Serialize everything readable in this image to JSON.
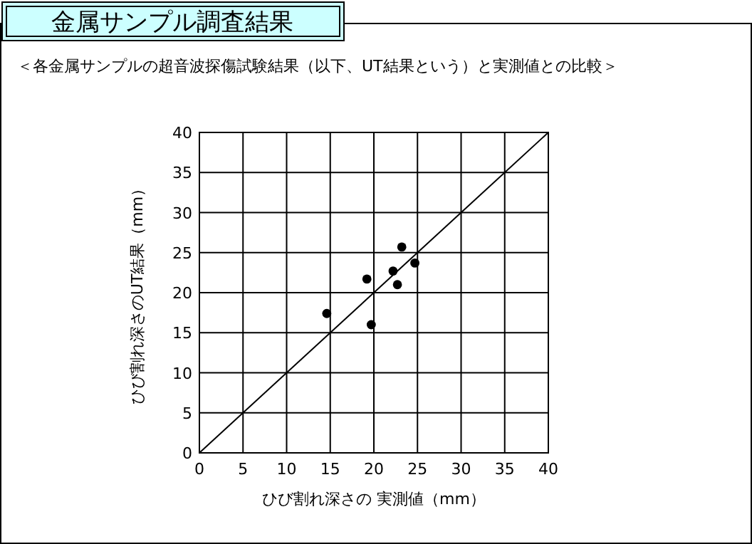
{
  "chart_data": {
    "type": "scatter",
    "title": "金属サンプル調査結果",
    "subtitle": "＜各金属サンプルの超音波探傷試験結果（以下、UT結果という）と実測値との比較＞",
    "xlabel": "ひび割れ深さの 実測値（mm）",
    "ylabel": "ひび割れ深さのUT結果（mm）",
    "series": [
      {
        "marker": "circle",
        "color": "#000000",
        "x": [
          14.6,
          19.2,
          19.7,
          22.2,
          22.7,
          23.2,
          24.7
        ],
        "values": [
          17.4,
          21.7,
          16.0,
          22.7,
          21.0,
          25.7,
          23.7
        ]
      },
      {
        "type": "line",
        "color": "#000000",
        "x": [
          0,
          40
        ],
        "values": [
          0,
          40
        ]
      }
    ],
    "xlim": [
      0,
      40
    ],
    "ylim": [
      0,
      40
    ],
    "xticks": [
      0,
      5,
      10,
      15,
      20,
      25,
      30,
      35,
      40
    ],
    "yticks": [
      0,
      5,
      10,
      15,
      20,
      25,
      30,
      35,
      40
    ],
    "grid": true
  }
}
